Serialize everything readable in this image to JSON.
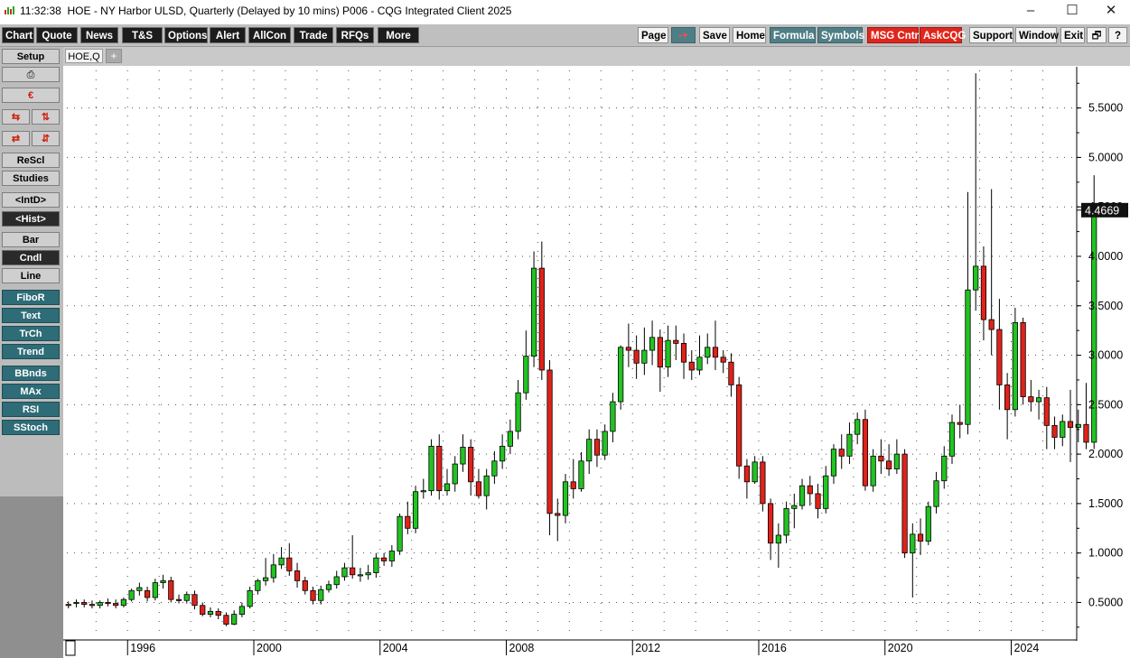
{
  "window": {
    "time": "11:32:38",
    "title": "HOE - NY Harbor ULSD, Quarterly (Delayed by 10 mins)   P006 - CQG Integrated Client 2025",
    "minimize_glyph": "–",
    "maximize_glyph": "☐",
    "close_glyph": "✕"
  },
  "toolbar": {
    "left": [
      "Chart",
      "Quote",
      "News",
      "T&S",
      "Options",
      "Alert",
      "AllCon",
      "Trade",
      "RFQs",
      "More"
    ],
    "right": [
      {
        "label": "Page",
        "style": "light"
      },
      {
        "label": "-+",
        "style": "teal"
      },
      {
        "label": "Save",
        "style": "light"
      },
      {
        "label": "Home",
        "style": "light"
      },
      {
        "label": "Formula",
        "style": "teal"
      },
      {
        "label": "Symbols",
        "style": "teal"
      },
      {
        "label": "MSG Cntr",
        "style": "red"
      },
      {
        "label": "AskCQG",
        "style": "red"
      },
      {
        "label": "Support",
        "style": "light"
      },
      {
        "label": "Window",
        "style": "light"
      },
      {
        "label": "Exit",
        "style": "light"
      },
      {
        "label": "🗗",
        "style": "light"
      },
      {
        "label": "?",
        "style": "light"
      }
    ]
  },
  "tabs": {
    "active": "HOE,Q",
    "add": "+"
  },
  "sidebar": {
    "setup": "Setup",
    "print_icon": "⎙",
    "misc_icon": "€",
    "row_a": [
      "⇆",
      "⇅"
    ],
    "row_b": [
      "⇄",
      "⇵"
    ],
    "buttons1": [
      "ReScl",
      "Studies",
      "<IntD>",
      "<Hist>"
    ],
    "buttons2": [
      "Bar",
      "Cndl",
      "Line"
    ],
    "studies": [
      "FiboR",
      "Text",
      "TrCh",
      "Trend",
      "BBnds",
      "MAx",
      "RSI",
      "SStoch"
    ]
  },
  "colors": {
    "up": "#22c322",
    "down": "#e0221a",
    "wick": "#000000",
    "grid": "#505050"
  },
  "chart_data": {
    "type": "candlestick",
    "symbol": "HOE,Q",
    "last_price": "4.4669",
    "y_ticks": [
      "0.5000",
      "1.0000",
      "1.5000",
      "2.0000",
      "2.5000",
      "3.0000",
      "3.5000",
      "4.0000",
      "4.5000",
      "5.0000",
      "5.5000"
    ],
    "ylim": [
      0.13,
      5.88
    ],
    "x_ticks": [
      "1996",
      "2000",
      "2004",
      "2008",
      "2012",
      "2016",
      "2020",
      "2024"
    ],
    "x_start_year": 1994,
    "xlim_quarters": [
      -0.2,
      127.8
    ],
    "candles": [
      [
        0.48,
        0.47,
        0.51,
        0.44
      ],
      [
        0.49,
        0.5,
        0.53,
        0.45
      ],
      [
        0.5,
        0.48,
        0.53,
        0.45
      ],
      [
        0.48,
        0.47,
        0.52,
        0.44
      ],
      [
        0.47,
        0.5,
        0.52,
        0.44
      ],
      [
        0.5,
        0.49,
        0.54,
        0.46
      ],
      [
        0.49,
        0.47,
        0.53,
        0.44
      ],
      [
        0.47,
        0.53,
        0.55,
        0.45
      ],
      [
        0.53,
        0.62,
        0.64,
        0.51
      ],
      [
        0.62,
        0.65,
        0.7,
        0.57
      ],
      [
        0.62,
        0.55,
        0.66,
        0.51
      ],
      [
        0.55,
        0.7,
        0.74,
        0.52
      ],
      [
        0.7,
        0.72,
        0.78,
        0.64
      ],
      [
        0.72,
        0.53,
        0.76,
        0.5
      ],
      [
        0.53,
        0.52,
        0.58,
        0.49
      ],
      [
        0.52,
        0.58,
        0.61,
        0.49
      ],
      [
        0.58,
        0.47,
        0.62,
        0.43
      ],
      [
        0.47,
        0.38,
        0.5,
        0.36
      ],
      [
        0.38,
        0.41,
        0.45,
        0.35
      ],
      [
        0.41,
        0.37,
        0.44,
        0.33
      ],
      [
        0.37,
        0.28,
        0.4,
        0.26
      ],
      [
        0.28,
        0.38,
        0.42,
        0.27
      ],
      [
        0.38,
        0.46,
        0.5,
        0.35
      ],
      [
        0.46,
        0.62,
        0.66,
        0.44
      ],
      [
        0.62,
        0.72,
        0.74,
        0.58
      ],
      [
        0.72,
        0.75,
        0.95,
        0.67
      ],
      [
        0.75,
        0.88,
        0.99,
        0.7
      ],
      [
        0.88,
        0.95,
        1.06,
        0.84
      ],
      [
        0.95,
        0.82,
        1.1,
        0.77
      ],
      [
        0.82,
        0.72,
        0.9,
        0.65
      ],
      [
        0.72,
        0.62,
        0.76,
        0.58
      ],
      [
        0.62,
        0.52,
        0.66,
        0.48
      ],
      [
        0.52,
        0.63,
        0.67,
        0.48
      ],
      [
        0.63,
        0.68,
        0.72,
        0.6
      ],
      [
        0.68,
        0.76,
        0.82,
        0.64
      ],
      [
        0.76,
        0.85,
        0.9,
        0.72
      ],
      [
        0.85,
        0.78,
        1.18,
        0.74
      ],
      [
        0.78,
        0.78,
        0.85,
        0.71
      ],
      [
        0.78,
        0.8,
        0.88,
        0.73
      ],
      [
        0.8,
        0.95,
        1.0,
        0.75
      ],
      [
        0.95,
        0.92,
        1.0,
        0.87
      ],
      [
        0.92,
        1.02,
        1.08,
        0.86
      ],
      [
        1.02,
        1.37,
        1.4,
        0.98
      ],
      [
        1.37,
        1.25,
        1.52,
        1.19
      ],
      [
        1.25,
        1.62,
        1.68,
        1.2
      ],
      [
        1.62,
        1.63,
        1.75,
        1.55
      ],
      [
        1.63,
        2.08,
        2.15,
        1.58
      ],
      [
        2.08,
        1.63,
        2.2,
        1.54
      ],
      [
        1.63,
        1.7,
        1.85,
        1.58
      ],
      [
        1.7,
        1.9,
        1.98,
        1.62
      ],
      [
        1.9,
        2.07,
        2.2,
        1.82
      ],
      [
        2.07,
        1.72,
        2.15,
        1.58
      ],
      [
        1.72,
        1.58,
        1.85,
        1.55
      ],
      [
        1.58,
        1.78,
        1.85,
        1.44
      ],
      [
        1.78,
        1.93,
        2.03,
        1.7
      ],
      [
        1.93,
        2.08,
        2.2,
        1.85
      ],
      [
        2.08,
        2.23,
        2.35,
        2.0
      ],
      [
        2.23,
        2.62,
        2.75,
        2.15
      ],
      [
        2.62,
        2.99,
        3.25,
        2.55
      ],
      [
        2.99,
        3.88,
        4.05,
        2.88
      ],
      [
        3.88,
        2.85,
        4.15,
        2.75
      ],
      [
        2.85,
        1.4,
        2.95,
        1.18
      ],
      [
        1.4,
        1.38,
        1.55,
        1.12
      ],
      [
        1.38,
        1.72,
        1.8,
        1.3
      ],
      [
        1.72,
        1.65,
        1.95,
        1.55
      ],
      [
        1.65,
        1.93,
        2.02,
        1.62
      ],
      [
        1.93,
        2.15,
        2.25,
        1.8
      ],
      [
        2.15,
        1.99,
        2.25,
        1.87
      ],
      [
        1.99,
        2.23,
        2.3,
        1.94
      ],
      [
        2.23,
        2.53,
        2.62,
        2.12
      ],
      [
        2.53,
        3.08,
        3.1,
        2.45
      ],
      [
        3.08,
        3.05,
        3.32,
        2.88
      ],
      [
        3.05,
        2.92,
        3.2,
        2.76
      ],
      [
        2.92,
        3.05,
        3.28,
        2.8
      ],
      [
        3.05,
        3.18,
        3.35,
        2.9
      ],
      [
        3.18,
        2.88,
        3.26,
        2.63
      ],
      [
        2.88,
        3.15,
        3.3,
        2.78
      ],
      [
        3.15,
        3.12,
        3.3,
        2.95
      ],
      [
        3.12,
        2.93,
        3.22,
        2.76
      ],
      [
        2.93,
        2.85,
        3.05,
        2.75
      ],
      [
        2.85,
        2.98,
        3.2,
        2.8
      ],
      [
        2.98,
        3.08,
        3.22,
        2.91
      ],
      [
        3.08,
        2.98,
        3.35,
        2.85
      ],
      [
        2.98,
        2.93,
        3.05,
        2.82
      ],
      [
        2.93,
        2.7,
        3.02,
        2.58
      ],
      [
        2.7,
        1.88,
        2.78,
        1.75
      ],
      [
        1.88,
        1.72,
        1.95,
        1.55
      ],
      [
        1.72,
        1.92,
        1.98,
        1.7
      ],
      [
        1.92,
        1.5,
        1.98,
        1.42
      ],
      [
        1.5,
        1.1,
        1.55,
        0.93
      ],
      [
        1.1,
        1.18,
        1.3,
        0.85
      ],
      [
        1.18,
        1.45,
        1.52,
        1.1
      ],
      [
        1.45,
        1.48,
        1.6,
        1.25
      ],
      [
        1.48,
        1.68,
        1.75,
        1.44
      ],
      [
        1.68,
        1.6,
        1.78,
        1.48
      ],
      [
        1.6,
        1.45,
        1.7,
        1.35
      ],
      [
        1.45,
        1.78,
        1.88,
        1.4
      ],
      [
        1.78,
        2.05,
        2.1,
        1.7
      ],
      [
        2.05,
        1.98,
        2.2,
        1.85
      ],
      [
        1.98,
        2.2,
        2.32,
        1.9
      ],
      [
        2.2,
        2.35,
        2.42,
        2.1
      ],
      [
        2.35,
        1.68,
        2.45,
        1.63
      ],
      [
        1.68,
        1.98,
        2.05,
        1.62
      ],
      [
        1.98,
        1.93,
        2.15,
        1.8
      ],
      [
        1.93,
        1.85,
        2.1,
        1.78
      ],
      [
        1.85,
        2.0,
        2.15,
        1.8
      ],
      [
        2.0,
        1.0,
        2.05,
        0.95
      ],
      [
        1.0,
        1.19,
        1.3,
        0.55
      ],
      [
        1.19,
        1.12,
        1.35,
        0.98
      ],
      [
        1.12,
        1.47,
        1.52,
        1.08
      ],
      [
        1.47,
        1.73,
        1.82,
        1.4
      ],
      [
        1.73,
        1.98,
        2.08,
        1.65
      ],
      [
        1.98,
        2.32,
        2.4,
        1.9
      ],
      [
        2.32,
        2.3,
        2.5,
        2.16
      ],
      [
        2.3,
        3.66,
        4.65,
        2.2
      ],
      [
        3.66,
        3.9,
        5.85,
        3.45
      ],
      [
        3.9,
        3.36,
        4.1,
        3.15
      ],
      [
        3.36,
        3.26,
        4.68,
        3.0
      ],
      [
        3.26,
        2.7,
        3.57,
        2.45
      ],
      [
        2.7,
        2.45,
        2.82,
        2.15
      ],
      [
        2.45,
        3.33,
        3.48,
        2.38
      ],
      [
        3.33,
        2.58,
        3.38,
        2.5
      ],
      [
        2.58,
        2.53,
        2.75,
        2.43
      ],
      [
        2.53,
        2.57,
        2.65,
        2.35
      ],
      [
        2.57,
        2.29,
        2.68,
        2.05
      ],
      [
        2.29,
        2.17,
        2.38,
        2.05
      ],
      [
        2.17,
        2.33,
        2.4,
        2.08
      ],
      [
        2.33,
        2.27,
        2.65,
        1.92
      ],
      [
        2.27,
        2.3,
        2.45,
        2.12
      ],
      [
        2.3,
        2.12,
        2.72,
        2.05
      ],
      [
        2.12,
        4.4669,
        4.82,
        2.05
      ]
    ]
  }
}
